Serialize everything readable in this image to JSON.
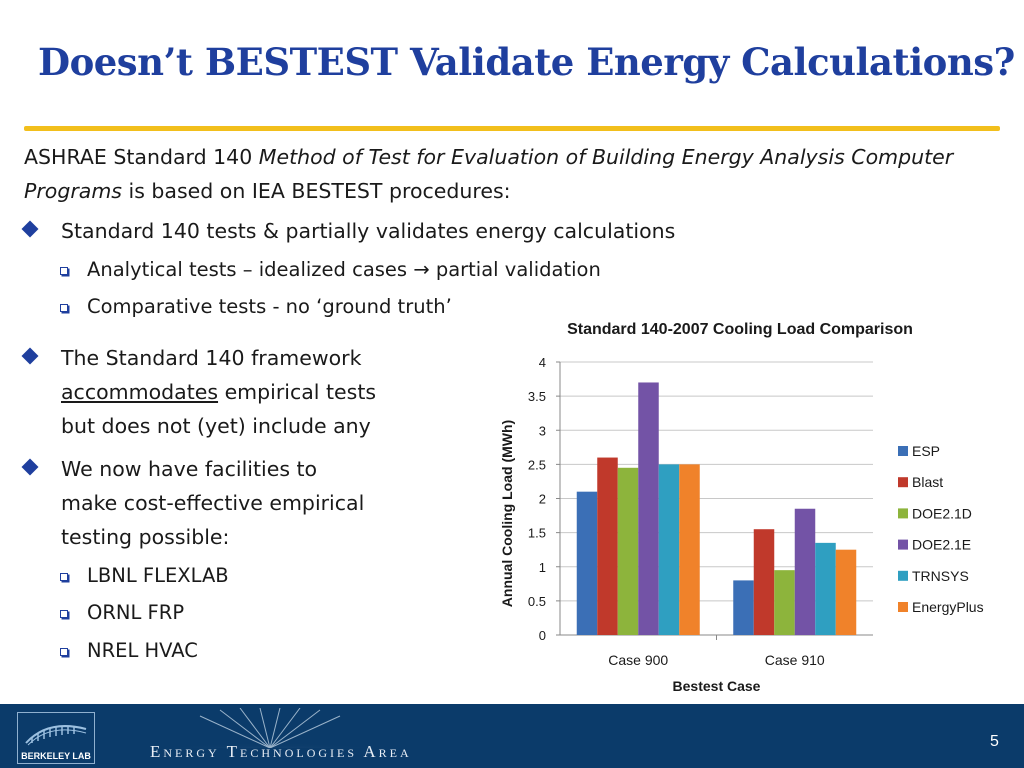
{
  "slide": {
    "title": "Doesn’t BESTEST Validate Energy Calculations?",
    "intro_prefix": "ASHRAE Standard 140 ",
    "intro_italic": "Method of Test for Evaluation of Building Energy Analysis Computer Programs",
    "intro_suffix": " is based on IEA BESTEST procedures:",
    "bullet1": "Standard 140 tests & partially validates energy calculations",
    "bullet1_sub1": "Analytical tests – idealized cases → partial validation",
    "bullet1_sub2": "Comparative tests - no ‘ground truth’",
    "bullet2_line1": "The Standard 140 framework",
    "bullet2_line2_underlined": "accommodates",
    "bullet2_line2_rest": " empirical tests",
    "bullet2_line3": "but does not (yet) include any",
    "bullet3_line1": "We now have facilities to",
    "bullet3_line2": "make cost-effective empirical",
    "bullet3_line3": "testing possible:",
    "bullet3_subs": [
      "LBNL FLEXLAB",
      "ORNL FRP",
      "NREL HVAC"
    ]
  },
  "footer": {
    "logo_text": "BERKELEY LAB",
    "area": "Energy Technologies Area",
    "page_number": "5",
    "color": "#0b3b6a"
  },
  "chart_data": {
    "type": "bar",
    "title": "Standard 140-2007 Cooling Load Comparison",
    "xlabel": "Bestest Case",
    "ylabel": "Annual Cooling Load (MWh)",
    "categories": [
      "Case 900",
      "Case 910"
    ],
    "ylim": [
      0,
      4
    ],
    "yticks": [
      0,
      0.5,
      1,
      1.5,
      2,
      2.5,
      3,
      3.5,
      4
    ],
    "ytick_labels": [
      "0",
      "0.5",
      "1",
      "1.5",
      "2",
      "2.5",
      "3",
      "3.5",
      "4"
    ],
    "grid": true,
    "legend_position": "right",
    "series": [
      {
        "name": "ESP",
        "color": "#3b6fb6",
        "values": [
          2.1,
          0.8
        ]
      },
      {
        "name": "Blast",
        "color": "#c0392b",
        "values": [
          2.6,
          1.55
        ]
      },
      {
        "name": "DOE2.1D",
        "color": "#8db43c",
        "values": [
          2.45,
          0.95
        ]
      },
      {
        "name": "DOE2.1E",
        "color": "#7353a6",
        "values": [
          3.7,
          1.85
        ]
      },
      {
        "name": "TRNSYS",
        "color": "#2f9fc1",
        "values": [
          2.5,
          1.35
        ]
      },
      {
        "name": "EnergyPlus",
        "color": "#f0822a",
        "values": [
          2.5,
          1.25
        ]
      }
    ]
  }
}
